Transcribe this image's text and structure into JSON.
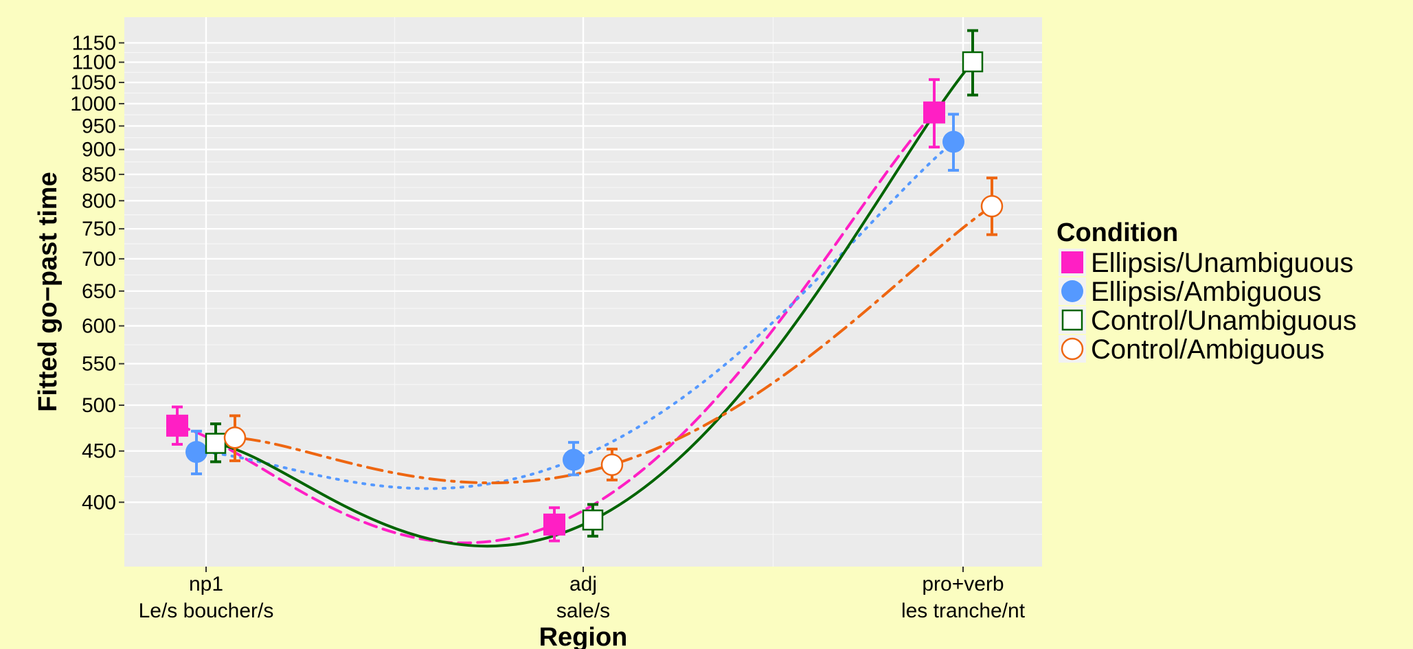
{
  "chart_data": {
    "type": "line",
    "xlabel": "Region",
    "ylabel": "Fitted go−past time",
    "categories": [
      {
        "line1": "np1",
        "line2": "Le/s boucher/s"
      },
      {
        "line1": "adj",
        "line2": "sale/s"
      },
      {
        "line1": "pro+verb",
        "line2": "les tranche/nt"
      }
    ],
    "y_scale": "log",
    "ylim": [
      345,
      1220
    ],
    "y_ticks": [
      400,
      450,
      500,
      550,
      600,
      650,
      700,
      750,
      800,
      850,
      900,
      950,
      1000,
      1050,
      1100,
      1150
    ],
    "grid": true,
    "legend": {
      "title": "Condition",
      "position": "right"
    },
    "series": [
      {
        "name": "Ellipsis/Unambiguous",
        "color": "#ff1fc4",
        "marker": "filled-square",
        "line": "dashed",
        "values": [
          477,
          380,
          980
        ],
        "lower": [
          457,
          366,
          905
        ],
        "upper": [
          498,
          395,
          1057
        ]
      },
      {
        "name": "Ellipsis/Ambiguous",
        "color": "#5599ff",
        "marker": "filled-circle",
        "line": "dotted",
        "values": [
          449,
          441,
          916
        ],
        "lower": [
          427,
          426,
          858
        ],
        "upper": [
          471,
          459,
          976
        ]
      },
      {
        "name": "Control/Unambiguous",
        "color": "#006400",
        "marker": "open-square",
        "line": "solid",
        "values": [
          458,
          384,
          1101
        ],
        "lower": [
          439,
          370,
          1020
        ],
        "upper": [
          479,
          398,
          1183
        ]
      },
      {
        "name": "Control/Ambiguous",
        "color": "#ee6611",
        "marker": "open-circle",
        "line": "dotdash",
        "values": [
          464,
          436,
          790
        ],
        "lower": [
          440,
          421,
          740
        ],
        "upper": [
          488,
          452,
          843
        ]
      }
    ]
  }
}
